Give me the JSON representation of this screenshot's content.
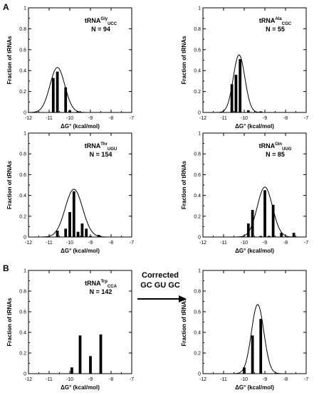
{
  "panel_letters": [
    "A",
    "B"
  ],
  "correction_text": {
    "line1": "Corrected",
    "line2": "GC GU GC"
  },
  "chart_data": [
    {
      "type": "bar",
      "title": "tRNAGlyUCC",
      "title_parts": {
        "base": "tRNA",
        "sup": "Gly",
        "sub": "UCC"
      },
      "annotation": "N = 94",
      "xlabel": "ΔG° (kcal/mol)",
      "ylabel": "Fraction of tRNAs",
      "xlim": [
        -12,
        -7
      ],
      "ylim": [
        0,
        1.0
      ],
      "xticks": [
        -12,
        -11,
        -10,
        -9,
        -8,
        -7
      ],
      "yticks": [
        0,
        0.2,
        0.4,
        0.6,
        0.8,
        1
      ],
      "x": [
        -10.8,
        -10.6,
        -10.2,
        -10.0,
        -9.6
      ],
      "values": [
        0.33,
        0.39,
        0.24,
        0.02,
        0.01
      ],
      "fit_curve": {
        "type": "gaussian",
        "mean": -10.6,
        "sd": 0.36,
        "peak": 0.43
      }
    },
    {
      "type": "bar",
      "title": "tRNAAlaCGC",
      "title_parts": {
        "base": "tRNA",
        "sup": "Ala",
        "sub": "CGC"
      },
      "annotation": "N = 55",
      "xlabel": "ΔG° (kcal/mol)",
      "ylabel": "Fraction of tRNAs",
      "xlim": [
        -12,
        -7
      ],
      "ylim": [
        0,
        1.0
      ],
      "xticks": [
        -12,
        -11,
        -10,
        -9,
        -8,
        -7
      ],
      "yticks": [
        0,
        0.2,
        0.4,
        0.6,
        0.8,
        1
      ],
      "x": [
        -10.6,
        -10.4,
        -10.2,
        -9.8,
        -9.2
      ],
      "values": [
        0.27,
        0.36,
        0.51,
        0.02,
        0.01
      ],
      "fit_curve": {
        "type": "gaussian",
        "mean": -10.25,
        "sd": 0.28,
        "peak": 0.55
      }
    },
    {
      "type": "bar",
      "title": "tRNAThrUGU",
      "title_parts": {
        "base": "tRNA",
        "sup": "Thr",
        "sub": "UGU"
      },
      "annotation": "N = 154",
      "xlabel": "ΔG° (kcal/mol)",
      "ylabel": "Fraction of tRNAs",
      "xlim": [
        -12,
        -7
      ],
      "ylim": [
        0,
        1.0
      ],
      "xticks": [
        -12,
        -11,
        -10,
        -9,
        -8,
        -7
      ],
      "yticks": [
        0,
        0.2,
        0.4,
        0.6,
        0.8,
        1
      ],
      "x": [
        -10.6,
        -10.2,
        -10.0,
        -9.8,
        -9.6,
        -9.4,
        -9.2,
        -9.0,
        -8.6
      ],
      "values": [
        0.06,
        0.08,
        0.24,
        0.44,
        0.05,
        0.13,
        0.08,
        0.01,
        0.02
      ],
      "fit_curve": {
        "type": "gaussian",
        "mean": -9.8,
        "sd": 0.42,
        "peak": 0.46
      }
    },
    {
      "type": "bar",
      "title": "tRNAGlnUUG",
      "title_parts": {
        "base": "tRNA",
        "sup": "Gln",
        "sub": "UUG"
      },
      "annotation": "N = 85",
      "xlabel": "ΔG° (kcal/mol)",
      "ylabel": "Fraction of tRNAs",
      "xlim": [
        -12,
        -7
      ],
      "ylim": [
        0,
        1.0
      ],
      "xticks": [
        -12,
        -11,
        -10,
        -9,
        -8,
        -7
      ],
      "yticks": [
        0,
        0.2,
        0.4,
        0.6,
        0.8,
        1
      ],
      "x": [
        -9.8,
        -9.6,
        -9.2,
        -9.0,
        -8.8,
        -8.6,
        -8.2,
        -7.6
      ],
      "values": [
        0.13,
        0.26,
        0.01,
        0.45,
        0.01,
        0.31,
        0.04,
        0.04
      ],
      "fit_curve": {
        "type": "gaussian",
        "mean": -9.0,
        "sd": 0.37,
        "peak": 0.48
      }
    },
    {
      "type": "bar",
      "title": "tRNATrpCCA",
      "title_parts": {
        "base": "tRNA",
        "sup": "Trp",
        "sub": "CCA"
      },
      "annotation": "N = 142",
      "xlabel": "ΔG° (kcal/mol)",
      "ylabel": "Fraction of tRNAs",
      "xlim": [
        -12,
        -7
      ],
      "ylim": [
        0,
        1.0
      ],
      "xticks": [
        -12,
        -11,
        -10,
        -9,
        -8,
        -7
      ],
      "yticks": [
        0,
        0.2,
        0.4,
        0.6,
        0.8,
        1
      ],
      "x": [
        -9.9,
        -9.5,
        -9.0,
        -8.5
      ],
      "values": [
        0.06,
        0.37,
        0.17,
        0.38
      ],
      "fit_curve": null
    },
    {
      "type": "bar",
      "title": "",
      "annotation": "",
      "xlabel": "ΔG° (kcal/mol)",
      "ylabel": "Fraction of tRNAs",
      "xlim": [
        -12,
        -7
      ],
      "ylim": [
        0,
        1.0
      ],
      "xticks": [
        -12,
        -11,
        -10,
        -9,
        -8,
        -7
      ],
      "yticks": [
        0,
        0.2,
        0.4,
        0.6,
        0.8,
        1
      ],
      "x": [
        -10.0,
        -9.6,
        -9.2
      ],
      "values": [
        0.06,
        0.37,
        0.53
      ],
      "fit_curve": {
        "type": "gaussian",
        "mean": -9.35,
        "sd": 0.3,
        "peak": 0.67
      }
    }
  ]
}
